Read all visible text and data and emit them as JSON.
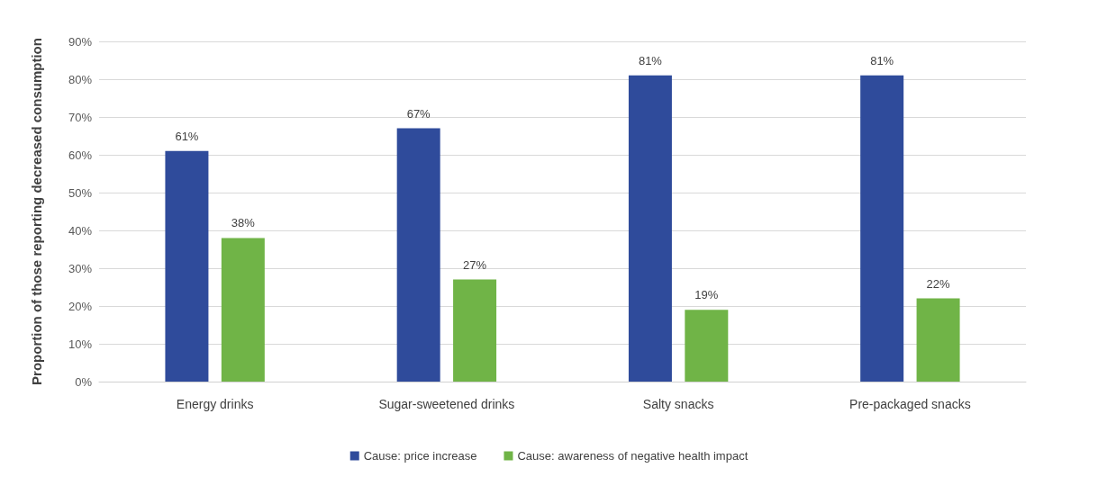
{
  "chart_data": {
    "type": "bar",
    "ylabel": "Proportion of those reporting decreased consumption",
    "categories": [
      "Energy drinks",
      "Sugar-sweetened drinks",
      "Salty snacks",
      "Pre-packaged snacks"
    ],
    "series": [
      {
        "name": "Cause: price increase",
        "color": "#2f4b9b",
        "values": [
          61,
          67,
          81,
          81
        ],
        "value_labels": [
          "61%",
          "67%",
          "81%",
          "81%"
        ]
      },
      {
        "name": "Cause: awareness of negative health impact",
        "color": "#70b447",
        "values": [
          38,
          27,
          19,
          22
        ],
        "value_labels": [
          "38%",
          "27%",
          "19%",
          "22%"
        ]
      }
    ],
    "ylim": [
      0,
      90
    ],
    "yticks": [
      {
        "value": 0,
        "label": "0%"
      },
      {
        "value": 10,
        "label": "10%"
      },
      {
        "value": 20,
        "label": "20%"
      },
      {
        "value": 30,
        "label": "30%"
      },
      {
        "value": 40,
        "label": "40%"
      },
      {
        "value": 50,
        "label": "50%"
      },
      {
        "value": 60,
        "label": "60%"
      },
      {
        "value": 70,
        "label": "70%"
      },
      {
        "value": 80,
        "label": "80%"
      },
      {
        "value": 90,
        "label": "90%"
      }
    ],
    "grid": "y",
    "legend": "bottom"
  }
}
